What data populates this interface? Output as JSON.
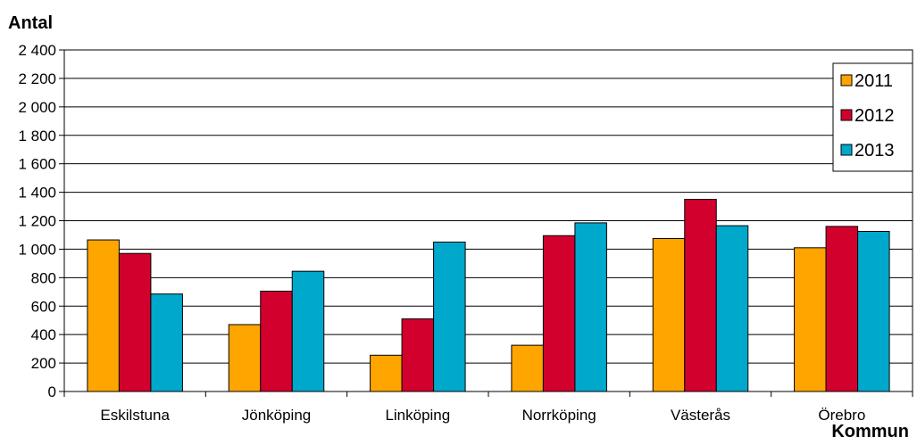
{
  "chart_data": {
    "type": "bar",
    "ylabel": "Antal",
    "xlabel": "Kommun",
    "categories": [
      "Eskilstuna",
      "Jönköping",
      "Linköping",
      "Norrköping",
      "Västerås",
      "Örebro"
    ],
    "series": [
      {
        "name": "2011",
        "color": "#FFA500",
        "values": [
          1065,
          470,
          255,
          325,
          1075,
          1010
        ]
      },
      {
        "name": "2012",
        "color": "#D2002D",
        "values": [
          970,
          705,
          510,
          1095,
          1350,
          1160
        ]
      },
      {
        "name": "2013",
        "color": "#00A8CC",
        "values": [
          685,
          845,
          1050,
          1185,
          1165,
          1125
        ]
      }
    ],
    "ylim": [
      0,
      2400
    ],
    "yticks": [
      0,
      200,
      400,
      600,
      800,
      1000,
      1200,
      1400,
      1600,
      1800,
      2000,
      2200,
      2400
    ],
    "ytick_labels": [
      "0",
      "200",
      "400",
      "600",
      "800",
      "1 000",
      "1 200",
      "1 400",
      "1 600",
      "1 800",
      "2 000",
      "2 200",
      "2 400"
    ],
    "grid": "horizontal",
    "legend_position": "top-right"
  }
}
